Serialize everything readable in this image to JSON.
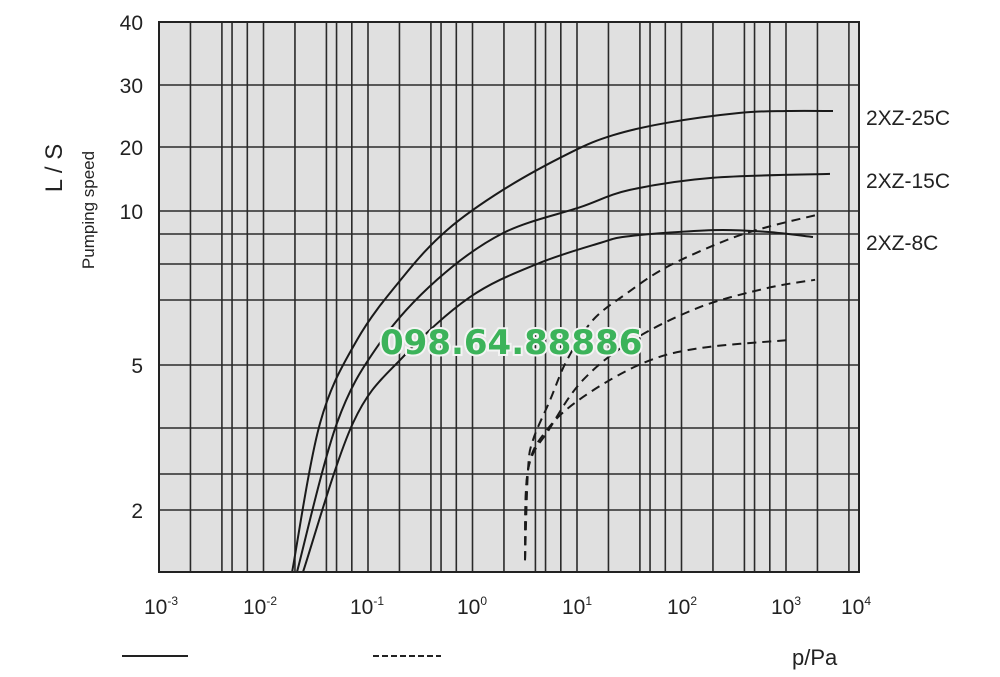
{
  "chart_data": {
    "type": "line",
    "xlabel": "p/Pa",
    "ylabel_units": "L / S",
    "ylabel": "Pumping speed",
    "x_scale": "log",
    "xlim": [
      0.001,
      5000
    ],
    "ylim": [
      1,
      40
    ],
    "grid": true,
    "plot_background": "#e0e0e0",
    "line_color": "#1a1a1a",
    "x_ticks": [
      {
        "value": 0.001,
        "base": "10",
        "exp": "-3"
      },
      {
        "value": 0.01,
        "base": "10",
        "exp": "-2"
      },
      {
        "value": 0.1,
        "base": "10",
        "exp": "-1"
      },
      {
        "value": 1,
        "base": "10",
        "exp": "0"
      },
      {
        "value": 10,
        "base": "10",
        "exp": "1"
      },
      {
        "value": 100,
        "base": "10",
        "exp": "2"
      },
      {
        "value": 1000,
        "base": "10",
        "exp": "3"
      },
      {
        "value": 10000,
        "base": "10",
        "exp": "4"
      }
    ],
    "y_ticks": [
      "40",
      "30",
      "20",
      "10",
      "5",
      "2"
    ],
    "y_gridlines": [
      30,
      20,
      10,
      9,
      8,
      7,
      5,
      4,
      3,
      2
    ],
    "series_labels": [
      "2XZ-25C",
      "2XZ-15C",
      "2XZ-8C"
    ],
    "series": [
      {
        "label_index": 0,
        "style": "solid",
        "points": [
          [
            0.0188,
            1
          ],
          [
            0.0348,
            4.08
          ],
          [
            0.0785,
            5.77
          ],
          [
            0.216,
            7.64
          ],
          [
            0.57,
            9.17
          ],
          [
            1.96,
            13.3
          ],
          [
            8.57,
            19.1
          ],
          [
            22.1,
            21.9
          ],
          [
            72.6,
            23.9
          ],
          [
            363,
            25.5
          ],
          [
            1023,
            25.8
          ],
          [
            2818,
            25.8
          ]
        ]
      },
      {
        "label_index": 1,
        "style": "solid",
        "points": [
          [
            0.0209,
            1
          ],
          [
            0.0505,
            4.08
          ],
          [
            0.13,
            5.68
          ],
          [
            0.457,
            7.56
          ],
          [
            1.96,
            9.04
          ],
          [
            10.7,
            10.6
          ],
          [
            32.1,
            13.3
          ],
          [
            200,
            15.2
          ],
          [
            2636,
            15.8
          ]
        ]
      },
      {
        "label_index": 2,
        "style": "solid",
        "points": [
          [
            0.0239,
            1
          ],
          [
            0.0718,
            4.08
          ],
          [
            0.216,
            5.25
          ],
          [
            0.946,
            7.08
          ],
          [
            4.14,
            8.0
          ],
          [
            16.6,
            8.7
          ],
          [
            32.1,
            8.93
          ],
          [
            200,
            9.17
          ],
          [
            658,
            9.09
          ],
          [
            1811,
            8.9
          ]
        ]
      },
      {
        "label_index": 0,
        "style": "dashed",
        "points": [
          [
            3.18,
            1.19
          ],
          [
            3.4,
            3.09
          ],
          [
            3.79,
            3.74
          ],
          [
            5.52,
            4.44
          ],
          [
            8.02,
            5.15
          ],
          [
            14.2,
            6.38
          ],
          [
            30.1,
            7.19
          ],
          [
            72.6,
            7.92
          ],
          [
            272,
            8.8
          ],
          [
            658,
            9.3
          ],
          [
            1980,
            9.83
          ]
        ]
      },
      {
        "label_index": 1,
        "style": "dashed",
        "points": [
          [
            3.18,
            1.19
          ],
          [
            3.4,
            3.09
          ],
          [
            5.52,
            4.0
          ],
          [
            11.4,
            4.76
          ],
          [
            34.4,
            5.77
          ],
          [
            150,
            6.78
          ],
          [
            658,
            7.33
          ],
          [
            1897,
            7.56
          ]
        ]
      },
      {
        "label_index": 2,
        "style": "dashed",
        "points": [
          [
            3.18,
            1.19
          ],
          [
            3.4,
            3.09
          ],
          [
            5.16,
            3.96
          ],
          [
            11.4,
            4.49
          ],
          [
            42.8,
            5.06
          ],
          [
            150,
            5.52
          ],
          [
            1091,
            5.77
          ]
        ]
      }
    ],
    "legend": {
      "placement": "bottom",
      "entries": [
        {
          "style": "solid"
        },
        {
          "style": "dashed"
        }
      ]
    }
  },
  "watermark": {
    "text": "098.64.88886",
    "color": "#3cb35a"
  }
}
